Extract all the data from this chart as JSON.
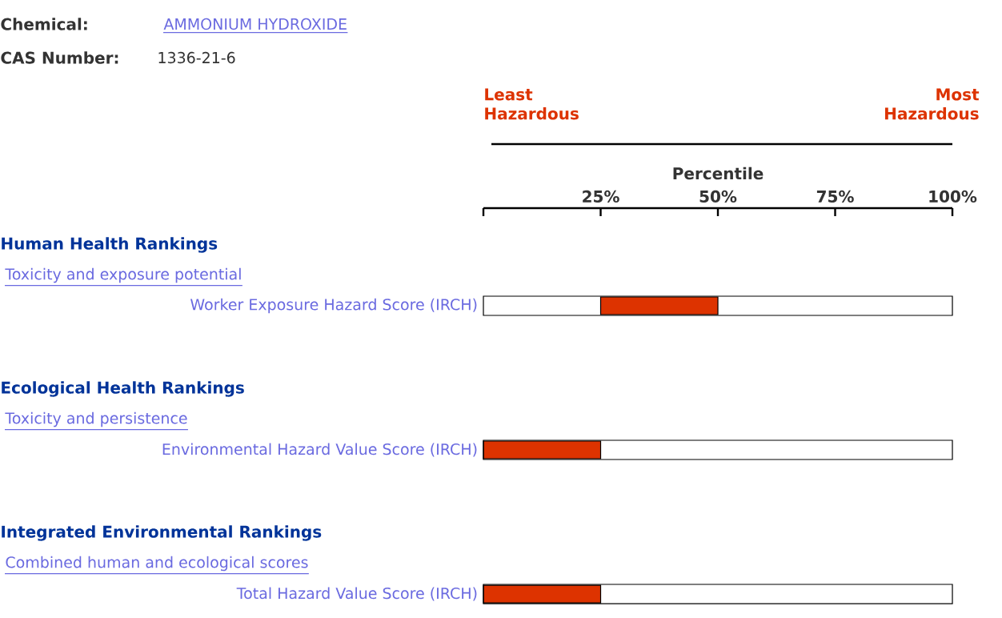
{
  "chart_data": {
    "type": "bar",
    "orientation": "horizontal",
    "categories": [
      "Worker Exposure Hazard Score (IRCH)",
      "Environmental Hazard Value Score (IRCH)",
      "Total Hazard Value Score (IRCH)"
    ],
    "series": [
      {
        "color": "#dd3300",
        "values": [
          25,
          25,
          25
        ],
        "base": [
          25,
          0,
          0
        ]
      }
    ],
    "xlim": [
      0,
      100
    ],
    "xticks": [
      {
        "value": 0,
        "label": null
      },
      {
        "value": 25,
        "label": "25%"
      },
      {
        "value": 50,
        "label": "50%"
      },
      {
        "value": 75,
        "label": "75%"
      },
      {
        "value": 100,
        "label": "100%"
      }
    ],
    "xlabel": "Percentile",
    "annotations": [
      "Chemical:",
      "AMMONIUM HYDROXIDE",
      "CAS Number:",
      "1336-21-6",
      "Least Hazardous",
      "Most Hazardous",
      "Human Health Rankings",
      "Toxicity and exposure potential",
      "Ecological Health Rankings",
      "Toxicity and persistence",
      "Integrated Environmental Rankings",
      "Combined human and ecological scores"
    ]
  }
}
